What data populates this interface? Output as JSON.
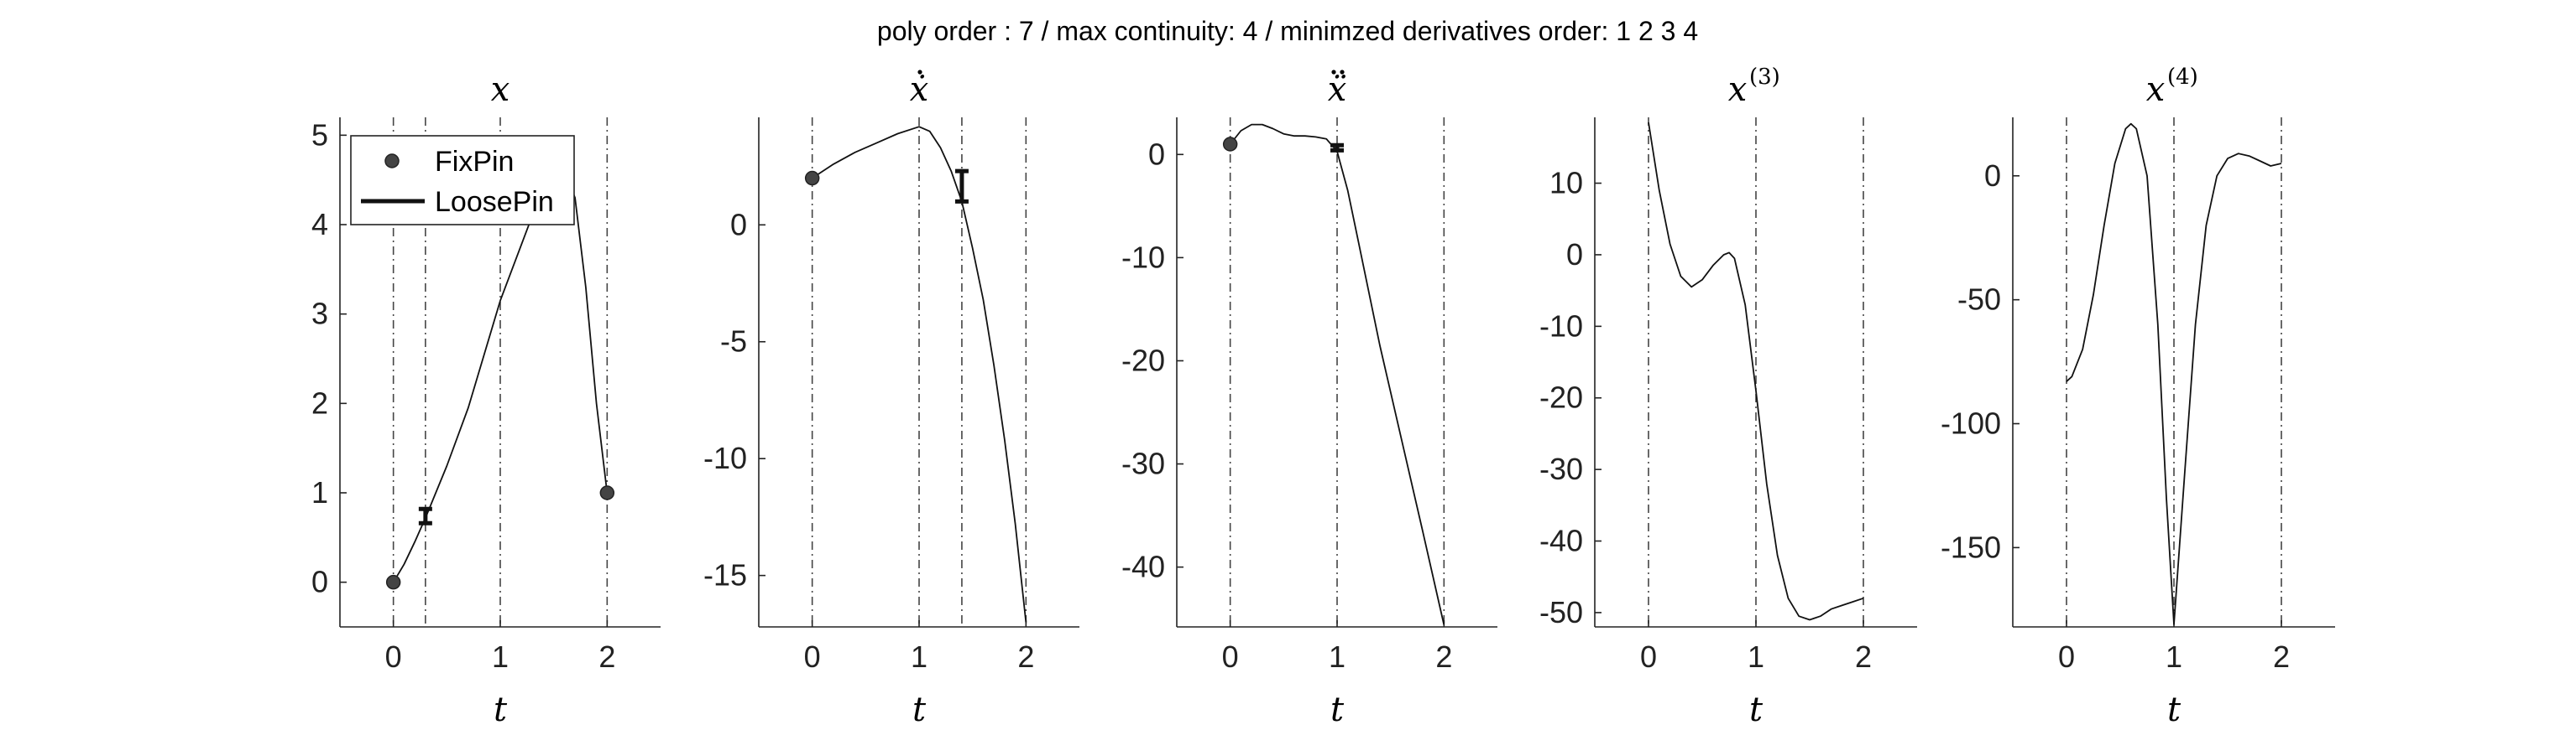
{
  "figure_title": "poly order : 7 / max continuity: 4 / minimzed derivatives order: 1  2  3  4",
  "legend": {
    "placement": "top-left",
    "items": [
      "FixPin",
      "LoosePin"
    ]
  },
  "chart_data": [
    {
      "type": "line",
      "title": "x",
      "title_sup": "",
      "dots": 0,
      "xlabel": "t",
      "xlim": [
        -0.5,
        2.5
      ],
      "ylim": [
        -0.5,
        5.2
      ],
      "xticks": [
        0,
        1,
        2
      ],
      "yticks": [
        0,
        1,
        2,
        3,
        4,
        5
      ],
      "knots": [
        0,
        0.3,
        1,
        2
      ],
      "series": [
        {
          "x": [
            0,
            0.1,
            0.2,
            0.3,
            0.5,
            0.7,
            1.0,
            1.3,
            1.5,
            1.6,
            1.7,
            1.8,
            1.9,
            2.0
          ],
          "y": [
            0,
            0.2,
            0.45,
            0.72,
            1.3,
            1.95,
            3.15,
            4.1,
            4.5,
            4.6,
            4.3,
            3.3,
            2.0,
            1.0
          ]
        }
      ],
      "fix_pins": [
        {
          "x": 0,
          "y": 0
        },
        {
          "x": 2,
          "y": 1
        }
      ],
      "loose_pins": [
        {
          "x": 0.3,
          "ylow": 0.66,
          "yhigh": 0.82
        }
      ]
    },
    {
      "type": "line",
      "title": "ẋ",
      "title_sup": "",
      "dots": 1,
      "xlabel": "t",
      "xlim": [
        -0.5,
        2.5
      ],
      "ylim": [
        -17.2,
        4.6
      ],
      "xticks": [
        0,
        1,
        2
      ],
      "yticks": [
        -15,
        -10,
        -5,
        0
      ],
      "knots": [
        0,
        1,
        1.4,
        2
      ],
      "series": [
        {
          "x": [
            0,
            0.2,
            0.4,
            0.6,
            0.8,
            1.0,
            1.1,
            1.2,
            1.3,
            1.4,
            1.5,
            1.6,
            1.7,
            1.8,
            1.9,
            2.0
          ],
          "y": [
            2.0,
            2.6,
            3.1,
            3.5,
            3.9,
            4.2,
            4.0,
            3.3,
            2.3,
            1.0,
            -1.0,
            -3.2,
            -6.0,
            -9.2,
            -12.8,
            -17.0
          ]
        }
      ],
      "fix_pins": [
        {
          "x": 0,
          "y": 2.0
        }
      ],
      "loose_pins": [
        {
          "x": 1.4,
          "ylow": 1.0,
          "yhigh": 2.3
        }
      ]
    },
    {
      "type": "line",
      "title": "ẍ",
      "title_sup": "",
      "dots": 2,
      "xlabel": "t",
      "xlim": [
        -0.5,
        2.5
      ],
      "ylim": [
        -45.8,
        3.6
      ],
      "xticks": [
        0,
        1,
        2
      ],
      "yticks": [
        -40,
        -30,
        -20,
        -10,
        0
      ],
      "knots": [
        0,
        1,
        2
      ],
      "series": [
        {
          "x": [
            0,
            0.1,
            0.2,
            0.3,
            0.4,
            0.5,
            0.6,
            0.7,
            0.8,
            0.9,
            1.0,
            1.1,
            1.2,
            1.4,
            1.6,
            1.8,
            2.0
          ],
          "y": [
            1.0,
            2.3,
            2.9,
            2.9,
            2.5,
            2.0,
            1.8,
            1.8,
            1.7,
            1.5,
            0.3,
            -3.5,
            -8.5,
            -18.5,
            -27.5,
            -36.5,
            -45.6
          ]
        }
      ],
      "fix_pins": [
        {
          "x": 0,
          "y": 1.0
        }
      ],
      "loose_pins": [
        {
          "x": 1.0,
          "ylow": 0.4,
          "yhigh": 0.9
        }
      ]
    },
    {
      "type": "line",
      "title": "x",
      "title_sup": "(3)",
      "dots": 0,
      "xlabel": "t",
      "xlim": [
        -0.5,
        2.5
      ],
      "ylim": [
        -52.0,
        19.2
      ],
      "xticks": [
        0,
        1,
        2
      ],
      "yticks": [
        -50,
        -40,
        -30,
        -20,
        -10,
        0,
        10
      ],
      "knots": [
        0,
        1,
        2
      ],
      "series": [
        {
          "x": [
            0,
            0.1,
            0.2,
            0.3,
            0.4,
            0.5,
            0.6,
            0.7,
            0.75,
            0.8,
            0.9,
            1.0,
            1.1,
            1.2,
            1.3,
            1.4,
            1.5,
            1.6,
            1.7,
            1.8,
            1.9,
            2.0
          ],
          "y": [
            18.5,
            9.0,
            1.5,
            -3.0,
            -4.5,
            -3.5,
            -1.5,
            0.0,
            0.3,
            -0.5,
            -7.0,
            -19.0,
            -32.0,
            -42.0,
            -48.0,
            -50.5,
            -51.0,
            -50.5,
            -49.5,
            -49.0,
            -48.5,
            -48.0
          ]
        }
      ],
      "fix_pins": [],
      "loose_pins": []
    },
    {
      "type": "line",
      "title": "x",
      "title_sup": "(4)",
      "dots": 0,
      "xlabel": "t",
      "xlim": [
        -0.5,
        2.5
      ],
      "ylim": [
        -182.0,
        23.6
      ],
      "xticks": [
        0,
        1,
        2
      ],
      "yticks": [
        -150,
        -100,
        -50,
        0
      ],
      "knots": [
        0,
        1,
        2
      ],
      "series": [
        {
          "x": [
            0,
            0.05,
            0.15,
            0.25,
            0.35,
            0.45,
            0.55,
            0.6,
            0.65,
            0.75,
            0.85,
            0.93,
            1.0,
            1.1,
            1.2,
            1.3,
            1.4,
            1.5,
            1.6,
            1.7,
            1.8,
            1.9,
            2.0
          ],
          "y": [
            -83.0,
            -81.0,
            -70.0,
            -48.0,
            -20.0,
            5.0,
            19.0,
            21.0,
            19.0,
            0.0,
            -60.0,
            -130.0,
            -181.0,
            -120.0,
            -60.0,
            -20.0,
            0.0,
            7.0,
            9.0,
            8.0,
            6.0,
            4.0,
            5.0
          ]
        }
      ],
      "fix_pins": [],
      "loose_pins": []
    }
  ]
}
